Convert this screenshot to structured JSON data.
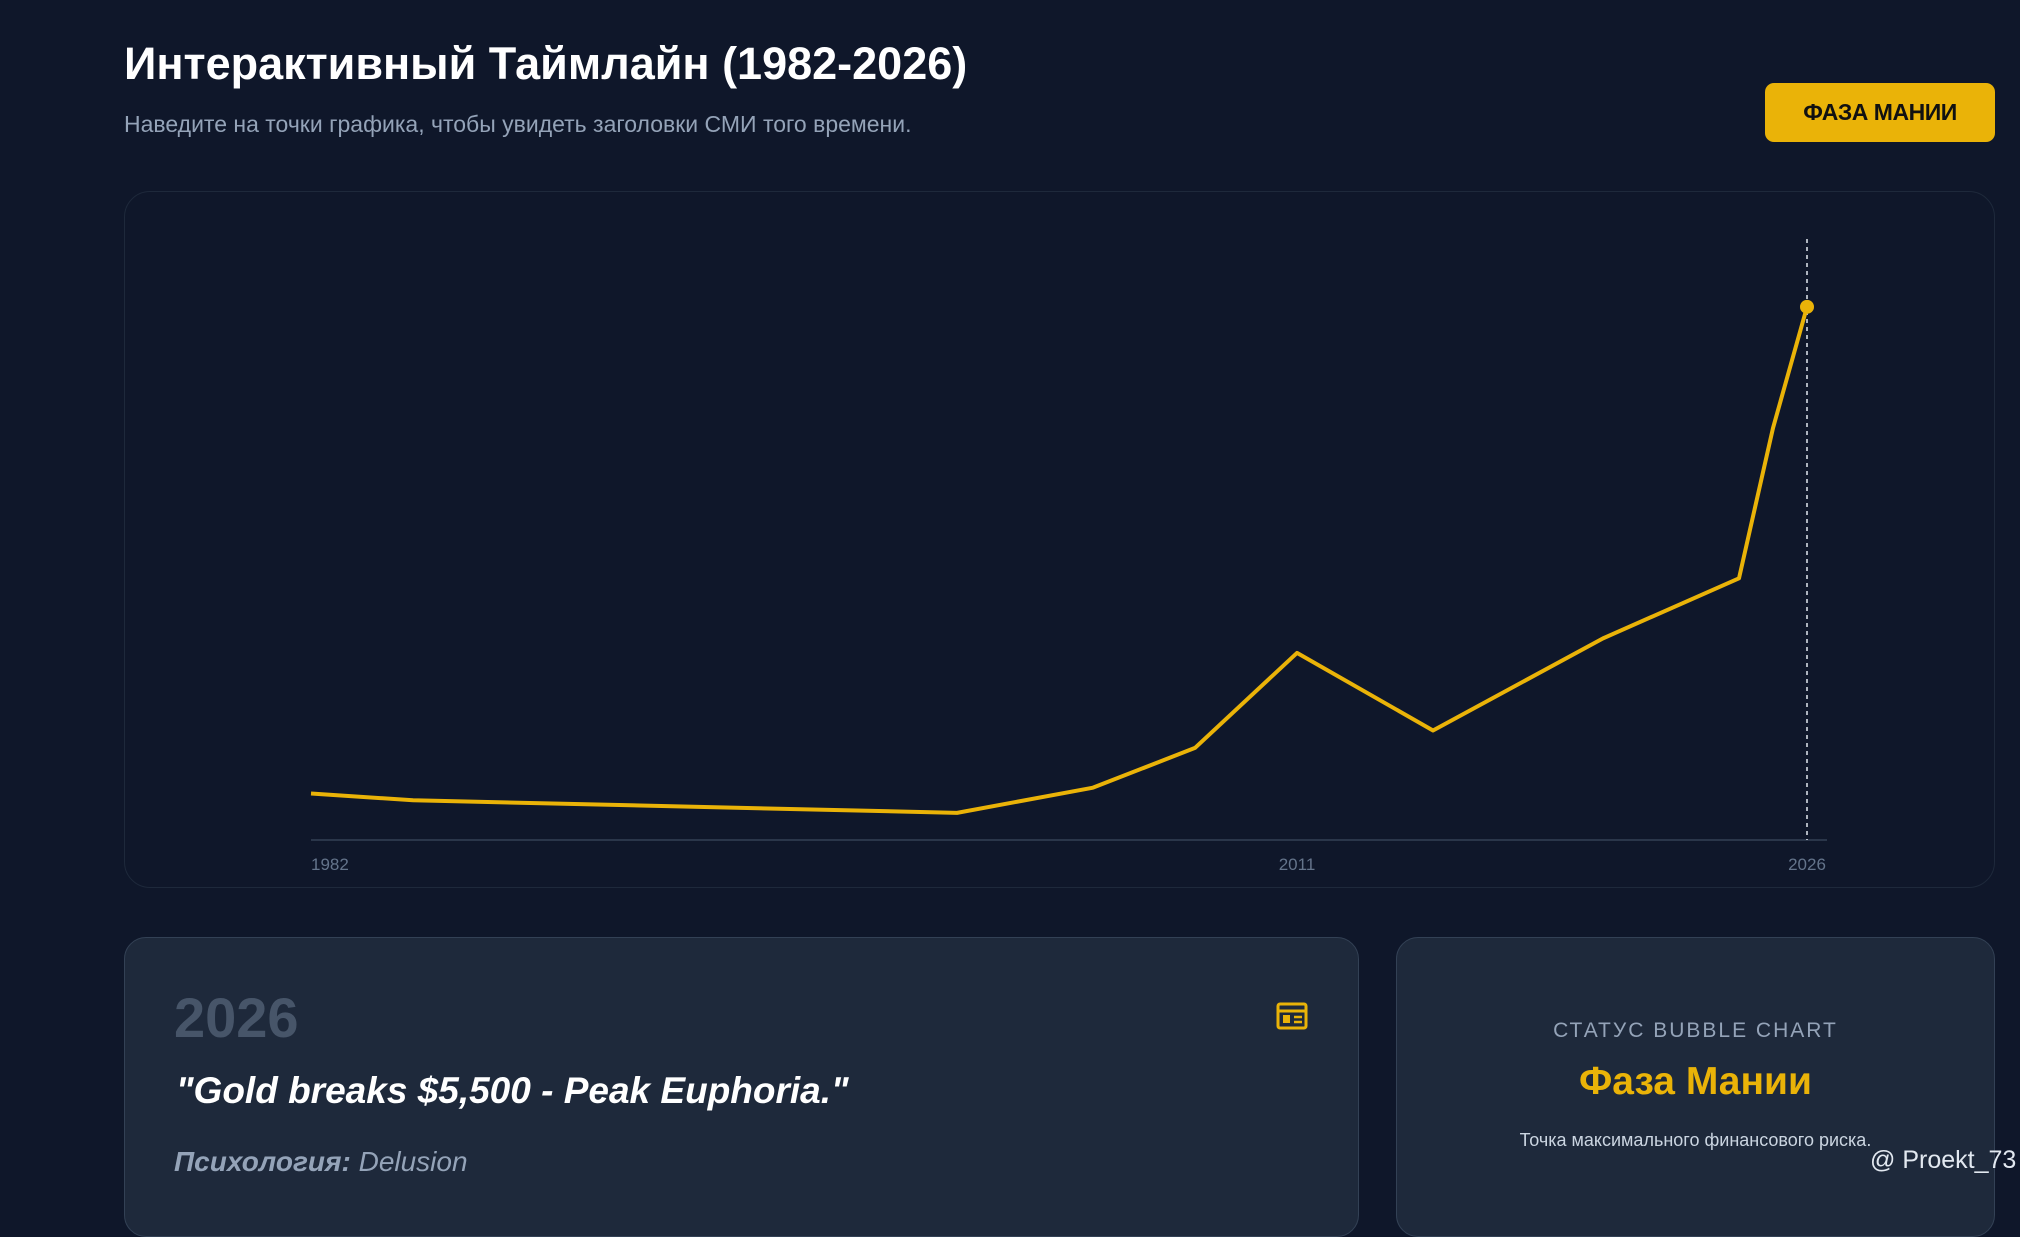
{
  "header": {
    "title": "Интерактивный Таймлайн (1982-2026)",
    "subtitle": "Наведите на точки графика, чтобы увидеть заголовки СМИ того времени.",
    "button": "ФАЗА МАНИИ"
  },
  "chart_data": {
    "type": "line",
    "x": [
      1982,
      1985,
      2001,
      2005,
      2008,
      2011,
      2015,
      2020,
      2024,
      2025,
      2026
    ],
    "values": [
      480,
      410,
      280,
      540,
      950,
      1930,
      1130,
      2080,
      2700,
      4250,
      5500
    ],
    "color": "#eab308",
    "xlim": [
      1982,
      2026
    ],
    "xticks": [
      1982,
      2011,
      2026
    ],
    "ylim": [
      0,
      6200
    ],
    "highlight_index": 10
  },
  "card": {
    "year": "2026",
    "quote": "\"Gold breaks $5,500 - Peak Euphoria.\"",
    "psychology_label": "Психология:",
    "psychology_value": "Delusion"
  },
  "status": {
    "label": "СТАТУС BUBBLE CHART",
    "phase": "Фаза Мании",
    "note": "Точка максимального финансового риска."
  },
  "watermark": "@ Proekt_73"
}
